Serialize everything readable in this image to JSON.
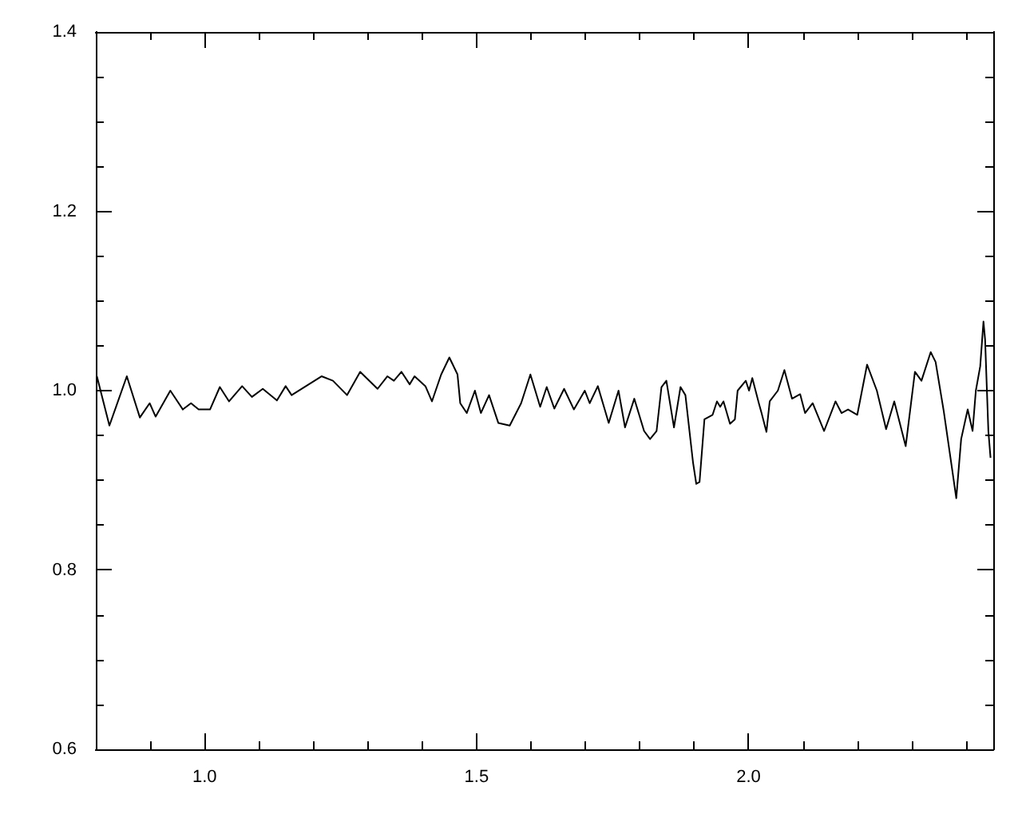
{
  "chart_data": {
    "type": "line",
    "color": "#000000",
    "grid": false,
    "marker": "none",
    "line_style": "solid",
    "xlim": [
      0.8,
      2.45
    ],
    "ylim": [
      0.6,
      1.4
    ],
    "xticks": [
      {
        "value": 0.9,
        "label": null
      },
      {
        "value": 1.0,
        "label": "1.0"
      },
      {
        "value": 1.1,
        "label": null
      },
      {
        "value": 1.2,
        "label": null
      },
      {
        "value": 1.3,
        "label": null
      },
      {
        "value": 1.4,
        "label": null
      },
      1.5,
      {
        "value": 1.6,
        "label": null
      },
      {
        "value": 1.7,
        "label": null
      },
      {
        "value": 1.8,
        "label": null
      },
      {
        "value": 1.9,
        "label": null
      },
      {
        "value": 2.0,
        "label": "2.0"
      },
      {
        "value": 2.1,
        "label": null
      },
      {
        "value": 2.2,
        "label": null
      },
      {
        "value": 2.3,
        "label": null
      },
      {
        "value": 2.4,
        "label": null
      }
    ],
    "yticks": [
      0.6,
      {
        "value": 0.65,
        "label": null
      },
      {
        "value": 0.7,
        "label": null
      },
      {
        "value": 0.75,
        "label": null
      },
      0.8,
      {
        "value": 0.85,
        "label": null
      },
      {
        "value": 0.9,
        "label": null
      },
      {
        "value": 0.95,
        "label": null
      },
      {
        "value": 1.0,
        "label": "1.0"
      },
      {
        "value": 1.05,
        "label": null
      },
      {
        "value": 1.1,
        "label": null
      },
      {
        "value": 1.15,
        "label": null
      },
      1.2,
      {
        "value": 1.25,
        "label": null
      },
      {
        "value": 1.3,
        "label": null
      },
      {
        "value": 1.35,
        "label": null
      },
      1.4
    ],
    "x": [
      0.802,
      0.825,
      0.857,
      0.881,
      0.899,
      0.91,
      0.937,
      0.96,
      0.975,
      0.989,
      1.01,
      1.028,
      1.045,
      1.069,
      1.087,
      1.107,
      1.133,
      1.149,
      1.16,
      1.215,
      1.236,
      1.262,
      1.286,
      1.318,
      1.336,
      1.348,
      1.362,
      1.377,
      1.386,
      1.406,
      1.418,
      1.435,
      1.45,
      1.465,
      1.47,
      1.482,
      1.497,
      1.508,
      1.523,
      1.54,
      1.561,
      1.582,
      1.599,
      1.617,
      1.629,
      1.643,
      1.661,
      1.679,
      1.699,
      1.708,
      1.723,
      1.743,
      1.761,
      1.773,
      1.79,
      1.808,
      1.819,
      1.831,
      1.84,
      1.849,
      1.863,
      1.875,
      1.884,
      1.898,
      1.904,
      1.91,
      1.919,
      1.934,
      1.942,
      1.948,
      1.954,
      1.966,
      1.975,
      1.98,
      1.995,
      2.001,
      2.007,
      2.019,
      2.024,
      2.033,
      2.039,
      2.054,
      2.066,
      2.08,
      2.095,
      2.104,
      2.118,
      2.139,
      2.16,
      2.171,
      2.183,
      2.2,
      2.218,
      2.236,
      2.253,
      2.268,
      2.289,
      2.306,
      2.318,
      2.335,
      2.344,
      2.359,
      2.374,
      2.382,
      2.391,
      2.403,
      2.412,
      2.418,
      2.426,
      2.432,
      2.435,
      2.441,
      2.445
    ],
    "values": [
      1.016,
      0.961,
      1.016,
      0.97,
      0.986,
      0.971,
      1.0,
      0.979,
      0.986,
      0.979,
      0.979,
      1.004,
      0.988,
      1.005,
      0.993,
      1.002,
      0.989,
      1.005,
      0.995,
      1.016,
      1.011,
      0.995,
      1.021,
      1.002,
      1.016,
      1.011,
      1.021,
      1.007,
      1.016,
      1.005,
      0.988,
      1.018,
      1.037,
      1.018,
      0.986,
      0.975,
      1.0,
      0.975,
      0.995,
      0.964,
      0.961,
      0.986,
      1.018,
      0.982,
      1.004,
      0.98,
      1.002,
      0.979,
      1.0,
      0.986,
      1.005,
      0.964,
      1.0,
      0.959,
      0.991,
      0.955,
      0.946,
      0.955,
      1.004,
      1.011,
      0.959,
      1.004,
      0.995,
      0.92,
      0.896,
      0.898,
      0.968,
      0.973,
      0.988,
      0.982,
      0.988,
      0.963,
      0.968,
      1.0,
      1.011,
      1.0,
      1.014,
      0.986,
      0.975,
      0.954,
      0.988,
      1.0,
      1.023,
      0.991,
      0.996,
      0.975,
      0.986,
      0.955,
      0.988,
      0.975,
      0.979,
      0.973,
      1.029,
      1.0,
      0.957,
      0.988,
      0.938,
      1.021,
      1.011,
      1.043,
      1.032,
      0.977,
      0.914,
      0.88,
      0.946,
      0.979,
      0.955,
      1.0,
      1.027,
      1.077,
      1.057,
      0.955,
      0.925
    ]
  }
}
